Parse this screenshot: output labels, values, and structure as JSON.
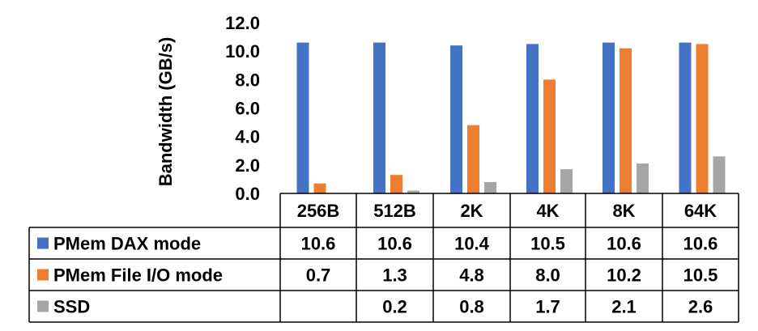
{
  "chart_data": {
    "type": "bar",
    "ylabel": "Bandwidth (GB/s)",
    "ylim": [
      0,
      12
    ],
    "yticks": [
      "0.0",
      "2.0",
      "4.0",
      "6.0",
      "8.0",
      "10.0",
      "12.0"
    ],
    "categories": [
      "256B",
      "512B",
      "2K",
      "4K",
      "8K",
      "64K"
    ],
    "grid": false,
    "legend": "data-table",
    "series": [
      {
        "name": "PMem DAX mode",
        "color": "#4472C4",
        "values": [
          10.6,
          10.6,
          10.4,
          10.5,
          10.6,
          10.6
        ],
        "labels": [
          "10.6",
          "10.6",
          "10.4",
          "10.5",
          "10.6",
          "10.6"
        ]
      },
      {
        "name": "PMem File I/O mode",
        "color": "#ED7D31",
        "values": [
          0.7,
          1.3,
          4.8,
          8.0,
          10.2,
          10.5
        ],
        "labels": [
          "0.7",
          "1.3",
          "4.8",
          "8.0",
          "10.2",
          "10.5"
        ]
      },
      {
        "name": "SSD",
        "color": "#A5A5A5",
        "values": [
          null,
          0.2,
          0.8,
          1.7,
          2.1,
          2.6
        ],
        "labels": [
          "",
          "0.2",
          "0.8",
          "1.7",
          "2.1",
          "2.6"
        ]
      }
    ]
  }
}
